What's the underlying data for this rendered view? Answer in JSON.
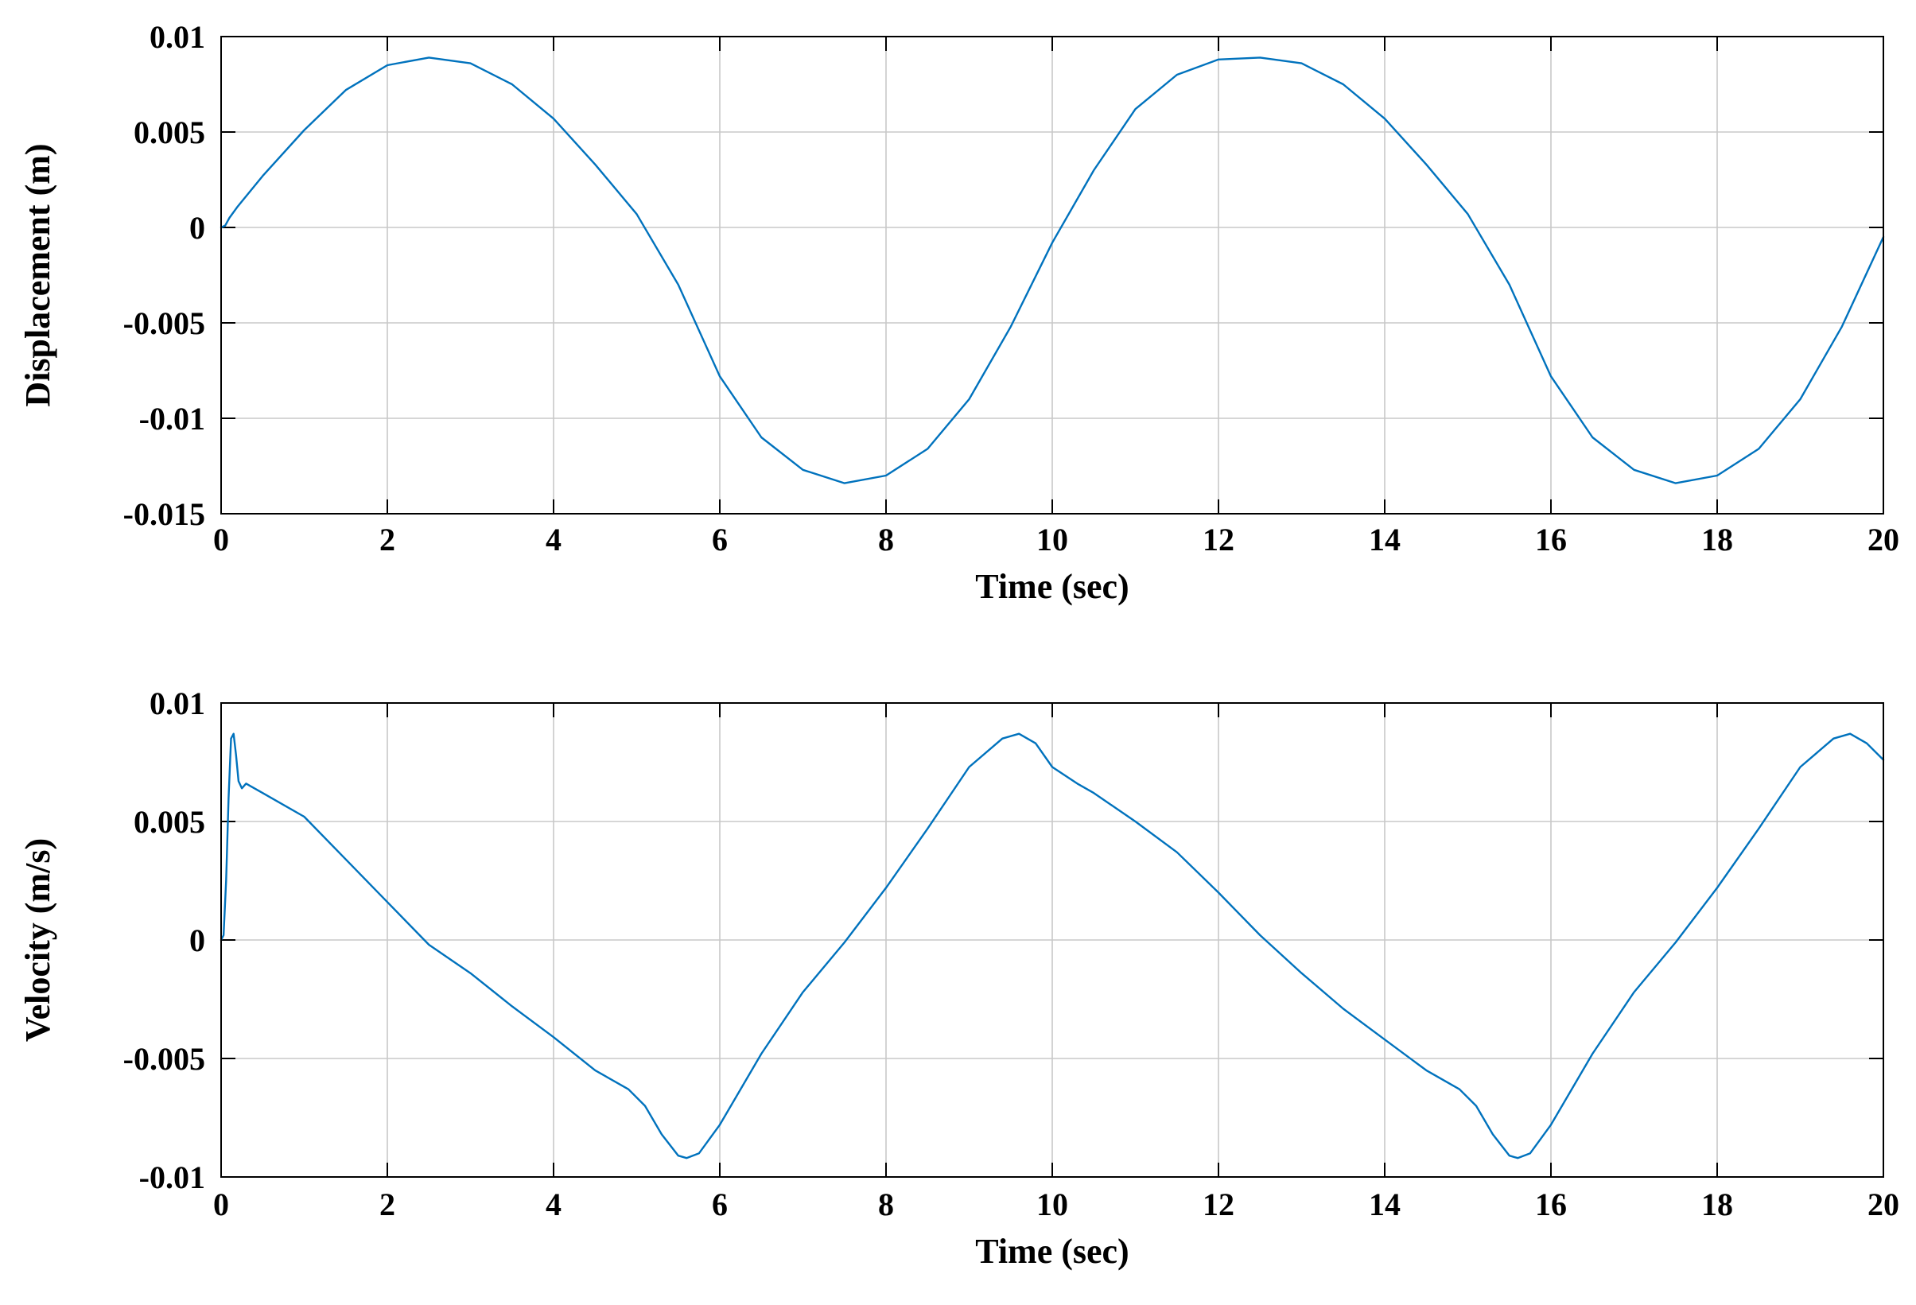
{
  "figure": {
    "line_color": "#0072bd",
    "grid_color": "#c8c8c8"
  },
  "chart_data": [
    {
      "type": "line",
      "title": "",
      "xlabel": "Time (sec)",
      "ylabel": "Displacement (m)",
      "xlim": [
        0,
        20
      ],
      "ylim": [
        -0.015,
        0.01
      ],
      "xticks": [
        0,
        2,
        4,
        6,
        8,
        10,
        12,
        14,
        16,
        18,
        20
      ],
      "xtick_labels": [
        "0",
        "2",
        "4",
        "6",
        "8",
        "10",
        "12",
        "14",
        "16",
        "18",
        "20"
      ],
      "yticks": [
        0.01,
        0.005,
        0,
        -0.005,
        -0.01,
        -0.015
      ],
      "ytick_labels": [
        "0.01",
        "0.005",
        "0",
        "-0.005",
        "-0.01",
        "-0.015"
      ],
      "grid": true,
      "legend": "none",
      "series": [
        {
          "x": [
            0,
            0.05,
            0.1,
            0.2,
            0.5,
            1,
            1.5,
            2,
            2.5,
            3,
            3.5,
            4,
            4.5,
            5,
            5.5,
            6,
            6.5,
            7,
            7.5,
            8,
            8.5,
            9,
            9.5,
            10,
            10.5,
            11,
            11.5,
            12,
            12.5,
            13,
            13.5,
            14,
            14.5,
            15,
            15.5,
            16,
            16.5,
            17,
            17.5,
            18,
            18.5,
            19,
            19.5,
            20
          ],
          "y": [
            0,
            0.0001,
            0.0005,
            0.0011,
            0.0027,
            0.0051,
            0.0072,
            0.0085,
            0.0089,
            0.0086,
            0.0075,
            0.0057,
            0.0033,
            0.0007,
            -0.003,
            -0.0078,
            -0.011,
            -0.0127,
            -0.0134,
            -0.013,
            -0.0116,
            -0.009,
            -0.0052,
            -0.0008,
            0.003,
            0.0062,
            0.008,
            0.0088,
            0.0089,
            0.0086,
            0.0075,
            0.0057,
            0.0033,
            0.0007,
            -0.003,
            -0.0078,
            -0.011,
            -0.0127,
            -0.0134,
            -0.013,
            -0.0116,
            -0.009,
            -0.0052,
            -0.0005
          ]
        }
      ]
    },
    {
      "type": "line",
      "title": "",
      "xlabel": "Time (sec)",
      "ylabel": "Velocity (m/s)",
      "xlim": [
        0,
        20
      ],
      "ylim": [
        -0.01,
        0.01
      ],
      "xticks": [
        0,
        2,
        4,
        6,
        8,
        10,
        12,
        14,
        16,
        18,
        20
      ],
      "xtick_labels": [
        "0",
        "2",
        "4",
        "6",
        "8",
        "10",
        "12",
        "14",
        "16",
        "18",
        "20"
      ],
      "yticks": [
        0.01,
        0.005,
        0,
        -0.005,
        -0.01
      ],
      "ytick_labels": [
        "0.01",
        "0.005",
        "0",
        "-0.005",
        "-0.01"
      ],
      "grid": true,
      "legend": "none",
      "series": [
        {
          "x": [
            0,
            0.03,
            0.06,
            0.09,
            0.12,
            0.15,
            0.18,
            0.21,
            0.25,
            0.3,
            0.35,
            0.5,
            1,
            1.5,
            2,
            2.5,
            3,
            3.5,
            4,
            4.5,
            4.9,
            5.1,
            5.3,
            5.5,
            5.6,
            5.75,
            6,
            6.5,
            7,
            7.5,
            8,
            8.5,
            9,
            9.4,
            9.6,
            9.8,
            10,
            10.3,
            10.5,
            11,
            11.5,
            12,
            12.5,
            13,
            13.5,
            14,
            14.5,
            14.9,
            15.1,
            15.3,
            15.5,
            15.6,
            15.75,
            16,
            16.5,
            17,
            17.5,
            18,
            18.5,
            19,
            19.4,
            19.6,
            19.8,
            20
          ],
          "y": [
            0,
            0.0002,
            0.0025,
            0.006,
            0.0085,
            0.0087,
            0.0078,
            0.0067,
            0.0064,
            0.0066,
            0.0065,
            0.0062,
            0.0052,
            0.0034,
            0.0016,
            -0.0002,
            -0.0014,
            -0.0028,
            -0.0041,
            -0.0055,
            -0.0063,
            -0.007,
            -0.0082,
            -0.0091,
            -0.0092,
            -0.009,
            -0.0078,
            -0.0048,
            -0.0022,
            -0.0001,
            0.0022,
            0.0047,
            0.0073,
            0.0085,
            0.0087,
            0.0083,
            0.0073,
            0.0066,
            0.0062,
            0.005,
            0.0037,
            0.002,
            0.0002,
            -0.0014,
            -0.0029,
            -0.0042,
            -0.0055,
            -0.0063,
            -0.007,
            -0.0082,
            -0.0091,
            -0.0092,
            -0.009,
            -0.0078,
            -0.0048,
            -0.0022,
            -0.0001,
            0.0022,
            0.0047,
            0.0073,
            0.0085,
            0.0087,
            0.0083,
            0.0076
          ]
        }
      ]
    }
  ]
}
